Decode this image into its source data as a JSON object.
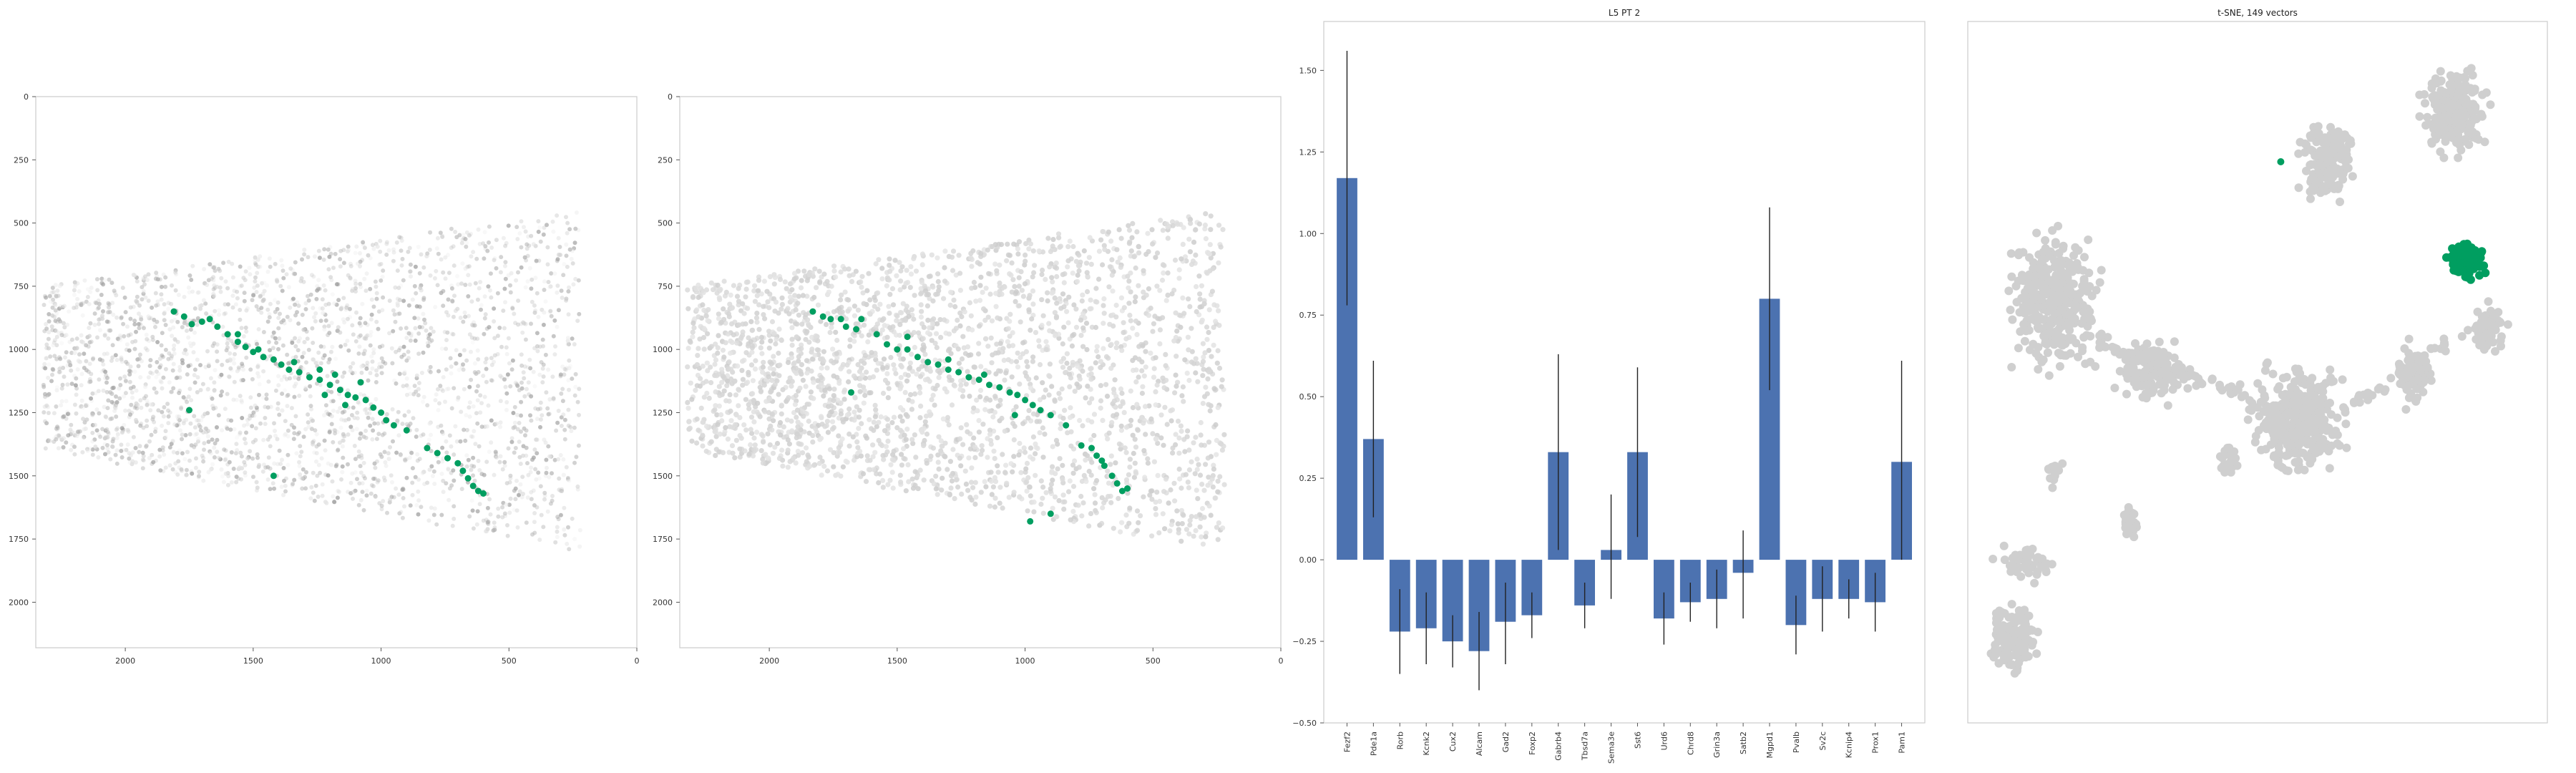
{
  "colors": {
    "accent": "#009e60",
    "bar": "#4c72b0",
    "background_dot": "#cfcfcf",
    "error_bar": "#222222"
  },
  "chart_data": [
    {
      "type": "scatter",
      "panel": "spatial-raw",
      "title": "",
      "xlabel": "",
      "ylabel": "",
      "xlim": [
        2350,
        0
      ],
      "ylim": [
        2180,
        0
      ],
      "xticks": [
        "2000",
        "1500",
        "1000",
        "500",
        "0"
      ],
      "yticks": [
        "0",
        "250",
        "500",
        "750",
        "1000",
        "1250",
        "1500",
        "1750",
        "2000"
      ],
      "highlight_points": [
        [
          1810,
          850
        ],
        [
          1770,
          870
        ],
        [
          1740,
          900
        ],
        [
          1700,
          890
        ],
        [
          1670,
          880
        ],
        [
          1640,
          910
        ],
        [
          1600,
          940
        ],
        [
          1560,
          970
        ],
        [
          1530,
          990
        ],
        [
          1500,
          1010
        ],
        [
          1460,
          1030
        ],
        [
          1420,
          1040
        ],
        [
          1390,
          1060
        ],
        [
          1360,
          1080
        ],
        [
          1320,
          1090
        ],
        [
          1280,
          1110
        ],
        [
          1240,
          1120
        ],
        [
          1200,
          1140
        ],
        [
          1160,
          1160
        ],
        [
          1130,
          1180
        ],
        [
          1100,
          1190
        ],
        [
          1060,
          1200
        ],
        [
          1030,
          1230
        ],
        [
          1000,
          1250
        ],
        [
          980,
          1280
        ],
        [
          950,
          1300
        ],
        [
          900,
          1320
        ],
        [
          820,
          1390
        ],
        [
          780,
          1410
        ],
        [
          740,
          1430
        ],
        [
          700,
          1450
        ],
        [
          680,
          1480
        ],
        [
          660,
          1510
        ],
        [
          640,
          1540
        ],
        [
          620,
          1560
        ],
        [
          600,
          1570
        ],
        [
          1560,
          940
        ],
        [
          1480,
          1000
        ],
        [
          1340,
          1050
        ],
        [
          1240,
          1080
        ],
        [
          1180,
          1100
        ],
        [
          1080,
          1130
        ],
        [
          1750,
          1240
        ],
        [
          1420,
          1500
        ],
        [
          1220,
          1180
        ],
        [
          1140,
          1220
        ]
      ]
    },
    {
      "type": "scatter",
      "panel": "spatial-aligned",
      "title": "",
      "xlabel": "",
      "ylabel": "",
      "xlim": [
        2350,
        0
      ],
      "ylim": [
        2180,
        0
      ],
      "xticks": [
        "2000",
        "1500",
        "1000",
        "500",
        "0"
      ],
      "yticks": [
        "0",
        "250",
        "500",
        "750",
        "1000",
        "1250",
        "1500",
        "1750",
        "2000"
      ],
      "highlight_points": [
        [
          1830,
          850
        ],
        [
          1790,
          870
        ],
        [
          1760,
          880
        ],
        [
          1720,
          880
        ],
        [
          1700,
          910
        ],
        [
          1660,
          920
        ],
        [
          1580,
          940
        ],
        [
          1540,
          980
        ],
        [
          1500,
          1000
        ],
        [
          1460,
          1000
        ],
        [
          1420,
          1030
        ],
        [
          1380,
          1050
        ],
        [
          1340,
          1060
        ],
        [
          1300,
          1080
        ],
        [
          1260,
          1090
        ],
        [
          1220,
          1110
        ],
        [
          1180,
          1120
        ],
        [
          1140,
          1140
        ],
        [
          1100,
          1150
        ],
        [
          1060,
          1170
        ],
        [
          1030,
          1180
        ],
        [
          1000,
          1200
        ],
        [
          970,
          1220
        ],
        [
          940,
          1240
        ],
        [
          900,
          1260
        ],
        [
          840,
          1300
        ],
        [
          780,
          1380
        ],
        [
          740,
          1390
        ],
        [
          720,
          1420
        ],
        [
          700,
          1440
        ],
        [
          690,
          1460
        ],
        [
          660,
          1500
        ],
        [
          640,
          1530
        ],
        [
          620,
          1560
        ],
        [
          600,
          1550
        ],
        [
          1640,
          880
        ],
        [
          1460,
          950
        ],
        [
          1300,
          1040
        ],
        [
          1160,
          1100
        ],
        [
          1680,
          1170
        ],
        [
          1040,
          1260
        ],
        [
          980,
          1680
        ],
        [
          900,
          1650
        ]
      ]
    },
    {
      "type": "bar",
      "panel": "gene-bars",
      "title": "L5 PT 2",
      "xlabel": "",
      "ylabel": "",
      "ylim": [
        -0.5,
        1.65
      ],
      "yticks": [
        "1.50",
        "1.25",
        "1.00",
        "0.75",
        "0.50",
        "0.25",
        "0.00",
        "−0.25",
        "−0.50"
      ],
      "categories": [
        "Fezf2",
        "Pde1a",
        "Rorb",
        "Kcnk2",
        "Cux2",
        "Alcam",
        "Gad2",
        "Foxp2",
        "Gabrb4",
        "Tbsd7a",
        "Sema3e",
        "Sst6",
        "Urd6",
        "Chrd8",
        "Grin3a",
        "Satb2",
        "Mgpd1",
        "Pvalb",
        "Sv2c",
        "Kcnip4",
        "Prox1",
        "Pam1"
      ],
      "values": [
        1.17,
        0.37,
        -0.22,
        -0.21,
        -0.25,
        -0.28,
        -0.19,
        -0.17,
        0.33,
        -0.14,
        0.03,
        0.33,
        -0.18,
        -0.13,
        -0.12,
        -0.04,
        0.8,
        -0.2,
        -0.12,
        -0.12,
        -0.13,
        0.3
      ],
      "errors": [
        [
          0.78,
          1.56
        ],
        [
          0.13,
          0.61
        ],
        [
          -0.35,
          -0.09
        ],
        [
          -0.32,
          -0.1
        ],
        [
          -0.33,
          -0.17
        ],
        [
          -0.4,
          -0.16
        ],
        [
          -0.32,
          -0.07
        ],
        [
          -0.24,
          -0.1
        ],
        [
          0.03,
          0.63
        ],
        [
          -0.21,
          -0.07
        ],
        [
          -0.12,
          0.2
        ],
        [
          0.07,
          0.59
        ],
        [
          -0.26,
          -0.1
        ],
        [
          -0.19,
          -0.07
        ],
        [
          -0.21,
          -0.03
        ],
        [
          -0.18,
          0.09
        ],
        [
          0.52,
          1.08
        ],
        [
          -0.29,
          -0.11
        ],
        [
          -0.22,
          -0.02
        ],
        [
          -0.18,
          -0.06
        ],
        [
          -0.22,
          -0.04
        ],
        [
          0.0,
          0.61
        ]
      ]
    },
    {
      "type": "scatter",
      "panel": "tsne",
      "title": "t-SNE, 149 vectors",
      "xlabel": "",
      "ylabel": "",
      "xlim": [
        0,
        100
      ],
      "ylim": [
        0,
        100
      ],
      "clusters": [
        {
          "cx": 62,
          "cy": 20,
          "rx": 5,
          "ry": 6,
          "n": 180
        },
        {
          "cx": 84,
          "cy": 13,
          "rx": 6,
          "ry": 7,
          "n": 240
        },
        {
          "cx": 15,
          "cy": 40,
          "rx": 9,
          "ry": 11,
          "n": 360
        },
        {
          "cx": 32,
          "cy": 50,
          "rx": 7,
          "ry": 5,
          "n": 160
        },
        {
          "cx": 57,
          "cy": 57,
          "rx": 9,
          "ry": 9,
          "n": 340
        },
        {
          "cx": 77,
          "cy": 50,
          "rx": 4,
          "ry": 5,
          "n": 90
        },
        {
          "cx": 90,
          "cy": 44,
          "rx": 3,
          "ry": 4,
          "n": 60
        },
        {
          "cx": 28,
          "cy": 71,
          "rx": 2,
          "ry": 3,
          "n": 35
        },
        {
          "cx": 45,
          "cy": 63,
          "rx": 2,
          "ry": 3,
          "n": 30
        },
        {
          "cx": 10,
          "cy": 77,
          "rx": 6,
          "ry": 3,
          "n": 50
        },
        {
          "cx": 8,
          "cy": 88,
          "rx": 5,
          "ry": 6,
          "n": 140
        },
        {
          "cx": 15,
          "cy": 64,
          "rx": 1.5,
          "ry": 2.5,
          "n": 15
        }
      ],
      "highlight_cluster": {
        "cx": 86,
        "cy": 34,
        "rx": 5,
        "ry": 4,
        "n": 149
      },
      "highlight_extra": [
        [
          54,
          20
        ]
      ]
    }
  ]
}
